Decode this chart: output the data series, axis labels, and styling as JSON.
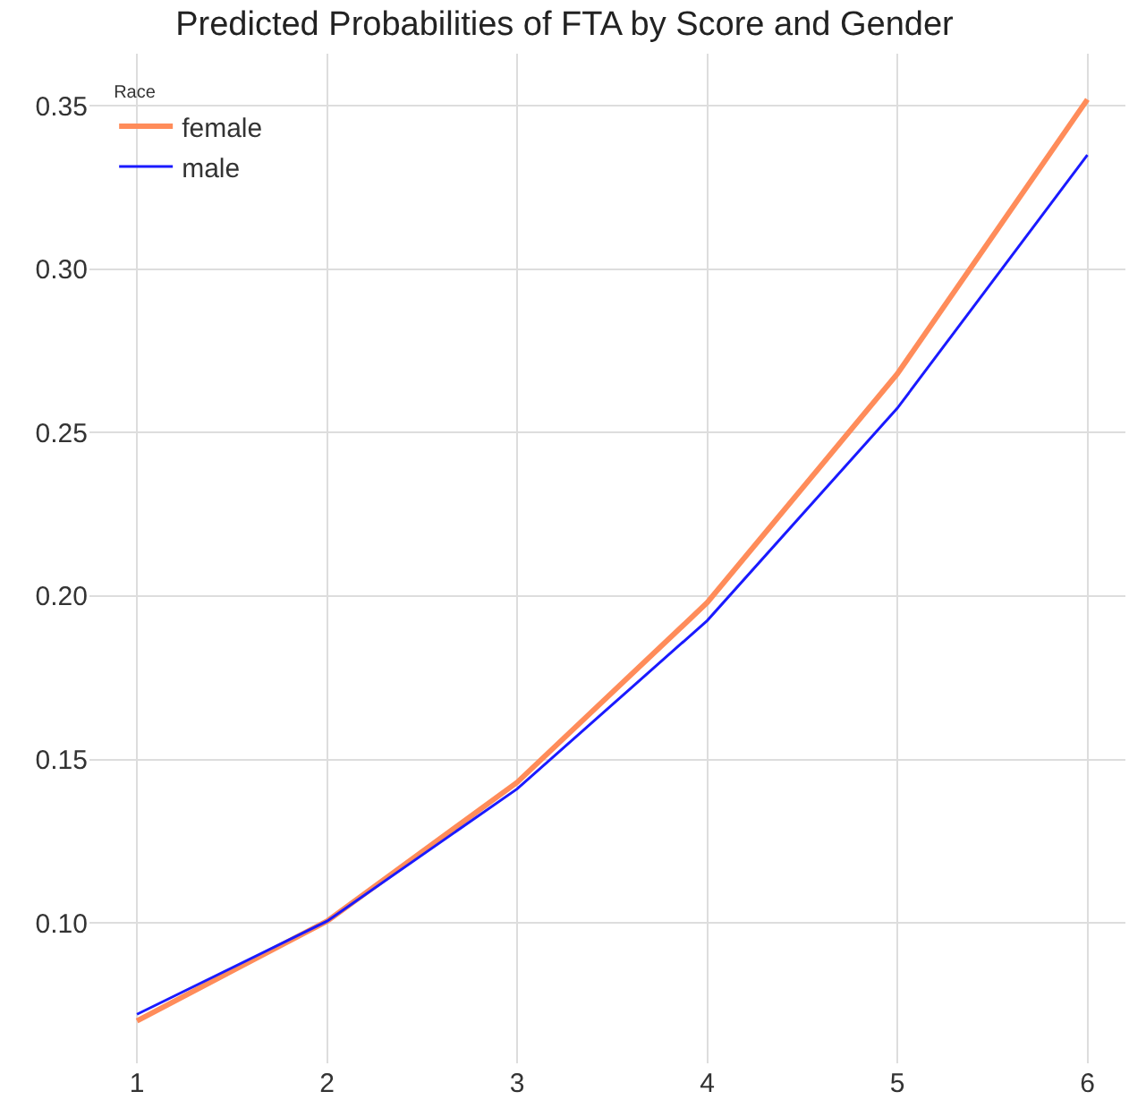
{
  "chart_data": {
    "type": "line",
    "title": "Predicted Probabilities of FTA by Score and Gender",
    "legend_title": "Race",
    "x": [
      1,
      2,
      3,
      4,
      5,
      6
    ],
    "series": [
      {
        "name": "female",
        "color": "#ff8c5a",
        "values": [
          0.07,
          0.1005,
          0.143,
          0.198,
          0.268,
          0.352
        ]
      },
      {
        "name": "male",
        "color": "#1a1aff",
        "values": [
          0.072,
          0.1005,
          0.141,
          0.1925,
          0.2575,
          0.335
        ]
      }
    ],
    "xlim": [
      0.75,
      6.2
    ],
    "xticks": [
      1,
      2,
      3,
      4,
      5,
      6
    ],
    "ylim": [
      0.057,
      0.366
    ],
    "yticks": [
      {
        "value": 0.1,
        "label": "0.10"
      },
      {
        "value": 0.15,
        "label": "0.15"
      },
      {
        "value": 0.2,
        "label": "0.20"
      },
      {
        "value": 0.25,
        "label": "0.25"
      },
      {
        "value": 0.3,
        "label": "0.30"
      },
      {
        "value": 0.35,
        "label": "0.35"
      }
    ],
    "grid": true,
    "legend": "top left",
    "marker": "none",
    "line_style": "solid"
  }
}
